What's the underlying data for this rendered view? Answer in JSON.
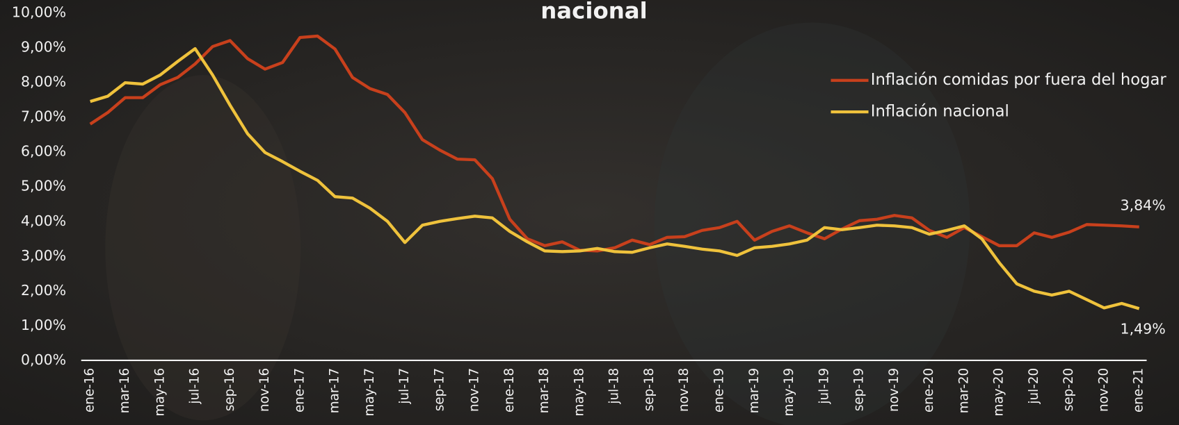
{
  "chart_data": {
    "type": "line",
    "title": "nacional",
    "categories": [
      "ene-16",
      null,
      "mar-16",
      null,
      "may-16",
      null,
      "jul-16",
      null,
      "sep-16",
      null,
      "nov-16",
      null,
      "ene-17",
      null,
      "mar-17",
      null,
      "may-17",
      null,
      "jul-17",
      null,
      "sep-17",
      null,
      "nov-17",
      null,
      "ene-18",
      null,
      "mar-18",
      null,
      "may-18",
      null,
      "jul-18",
      null,
      "sep-18",
      null,
      "nov-18",
      null,
      "ene-19",
      null,
      "mar-19",
      null,
      "may-19",
      null,
      "jul-19",
      null,
      "sep-19",
      null,
      "nov-19",
      null,
      "ene-20",
      null,
      "mar-20",
      null,
      "may-20",
      null,
      "jul-20",
      null,
      "sep-20",
      null,
      "nov-20",
      null,
      "ene-21"
    ],
    "series": [
      {
        "name": "Inflación comidas por fuera del hogar",
        "color": "#c8401c",
        "values": [
          6.8,
          7.13,
          7.56,
          7.56,
          7.93,
          8.14,
          8.53,
          9.03,
          9.2,
          8.68,
          8.38,
          8.57,
          9.29,
          9.33,
          8.96,
          8.14,
          7.82,
          7.65,
          7.13,
          6.35,
          6.05,
          5.79,
          5.77,
          5.23,
          4.06,
          3.5,
          3.3,
          3.41,
          3.17,
          3.15,
          3.24,
          3.46,
          3.33,
          3.54,
          3.56,
          3.74,
          3.82,
          4.0,
          3.46,
          3.71,
          3.87,
          3.67,
          3.5,
          3.78,
          4.02,
          4.06,
          4.17,
          4.1,
          3.74,
          3.54,
          3.82,
          3.56,
          3.3,
          3.3,
          3.67,
          3.54,
          3.69,
          3.91,
          3.89,
          3.87,
          3.84
        ],
        "value_labels": [
          null,
          null,
          null,
          null,
          null,
          null,
          null,
          null,
          null,
          null,
          null,
          null,
          null,
          null,
          null,
          null,
          null,
          null,
          null,
          null,
          null,
          null,
          null,
          null,
          null,
          null,
          null,
          null,
          null,
          null,
          null,
          null,
          null,
          null,
          null,
          null,
          null,
          null,
          null,
          null,
          null,
          null,
          null,
          null,
          null,
          null,
          null,
          null,
          null,
          null,
          null,
          null,
          null,
          null,
          null,
          null,
          null,
          null,
          null,
          null,
          "3,84%"
        ]
      },
      {
        "name": "Inflación nacional",
        "color": "#efc23c",
        "values": [
          7.45,
          7.6,
          7.99,
          7.95,
          8.21,
          8.6,
          8.97,
          8.21,
          7.34,
          6.52,
          5.98,
          5.72,
          5.44,
          5.18,
          4.71,
          4.67,
          4.38,
          4.0,
          3.39,
          3.89,
          4.0,
          4.08,
          4.15,
          4.1,
          3.71,
          3.41,
          3.15,
          3.13,
          3.15,
          3.22,
          3.13,
          3.11,
          3.24,
          3.35,
          3.28,
          3.2,
          3.15,
          3.02,
          3.24,
          3.28,
          3.35,
          3.46,
          3.82,
          3.76,
          3.82,
          3.89,
          3.87,
          3.82,
          3.63,
          3.74,
          3.87,
          3.5,
          2.81,
          2.2,
          1.99,
          1.88,
          1.99,
          1.75,
          1.51,
          1.64,
          1.49
        ],
        "value_labels": [
          null,
          null,
          null,
          null,
          null,
          null,
          null,
          null,
          null,
          null,
          null,
          null,
          null,
          null,
          null,
          null,
          null,
          null,
          null,
          null,
          null,
          null,
          null,
          null,
          null,
          null,
          null,
          null,
          null,
          null,
          null,
          null,
          null,
          null,
          null,
          null,
          null,
          null,
          null,
          null,
          null,
          null,
          null,
          null,
          null,
          null,
          null,
          null,
          null,
          null,
          null,
          null,
          null,
          null,
          null,
          null,
          null,
          null,
          null,
          null,
          "1,49%"
        ]
      }
    ],
    "ylim": [
      0,
      10
    ],
    "yticks": [
      {
        "value": 0,
        "label": "0,00%"
      },
      {
        "value": 1,
        "label": "1,00%"
      },
      {
        "value": 2,
        "label": "2,00%"
      },
      {
        "value": 3,
        "label": "3,00%"
      },
      {
        "value": 4,
        "label": "4,00%"
      },
      {
        "value": 5,
        "label": "5,00%"
      },
      {
        "value": 6,
        "label": "6,00%"
      },
      {
        "value": 7,
        "label": "7,00%"
      },
      {
        "value": 8,
        "label": "8,00%"
      },
      {
        "value": 9,
        "label": "9,00%"
      },
      {
        "value": 10,
        "label": "10,00%"
      }
    ],
    "grid": false,
    "legend": "top-right"
  }
}
